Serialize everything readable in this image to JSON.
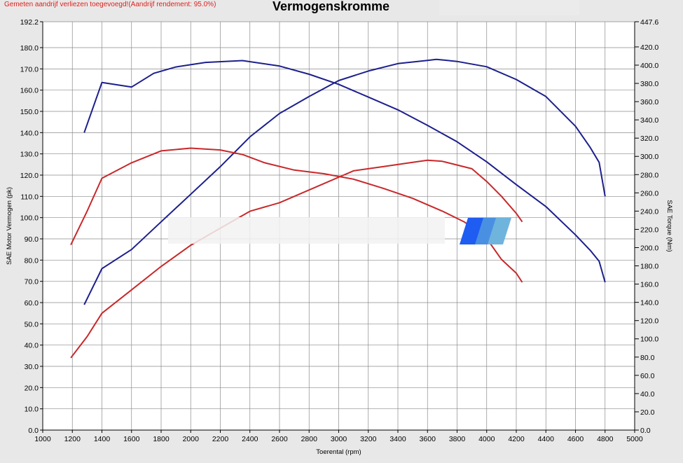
{
  "header": {
    "warning": "Gemeten aandrijf verliezen toegevoegd!(Aandrijf rendement: 95.0%)",
    "title": "Vermogenskromme"
  },
  "colors": {
    "blue": "#1c1f8c",
    "red": "#c8282a",
    "grid": "#8a8a8a",
    "plot_bg": "#ffffff",
    "page_bg": "#e8e8e8"
  },
  "chart_data": {
    "type": "line",
    "title": "Vermogenskromme",
    "xlabel": "Toerental (rpm)",
    "ylabel_left": "SAE Motor Vermogen (pk)",
    "ylabel_right": "SAE Torque (Nm)",
    "xlim": [
      1000,
      5000
    ],
    "ylim_left": [
      0,
      192.2
    ],
    "ylim_right": [
      0,
      447.6
    ],
    "grid": true,
    "x_ticks": [
      1000,
      1200,
      1400,
      1600,
      1800,
      2000,
      2200,
      2400,
      2600,
      2800,
      3000,
      3200,
      3400,
      3600,
      3800,
      4000,
      4200,
      4400,
      4600,
      4800,
      5000
    ],
    "x_tick_labels": [
      "1000",
      "1200",
      "1400",
      "1600",
      "1800",
      "2000",
      "2200",
      "2400",
      "2600",
      "2800",
      "3000",
      "3200",
      "3400",
      "3600",
      "3800",
      "4000",
      "4200",
      "4400",
      "4600",
      "4800",
      "5000"
    ],
    "y_left_ticks": [
      0,
      10,
      20,
      30,
      40,
      50,
      60,
      70,
      80,
      90,
      100,
      110,
      120,
      130,
      140,
      150,
      160,
      170,
      180,
      192.2
    ],
    "y_left_tick_labels": [
      "0.0",
      "10.0",
      "20.0",
      "30.0",
      "40.0",
      "50.0",
      "60.0",
      "70.0",
      "80.0",
      "90.0",
      "100.0",
      "110.0",
      "120.0",
      "130.0",
      "140.0",
      "150.0",
      "160.0",
      "170.0",
      "180.0",
      "192.2"
    ],
    "y_right_ticks": [
      0,
      20,
      40,
      60,
      80,
      100,
      120,
      140,
      160,
      180,
      200,
      220,
      240,
      260,
      280,
      300,
      320,
      340,
      360,
      380,
      400,
      420,
      447.6
    ],
    "y_right_tick_labels": [
      "0.0",
      "20.0",
      "40.0",
      "60.0",
      "80.0",
      "100.0",
      "120.0",
      "140.0",
      "160.0",
      "180.0",
      "200.0",
      "220.0",
      "240.0",
      "260.0",
      "280.0",
      "300.0",
      "320.0",
      "340.0",
      "360.0",
      "380.0",
      "400.0",
      "420.0",
      "447.6"
    ],
    "series": [
      {
        "color": "#1c1f8c",
        "axis": "left",
        "points": [
          [
            1280,
            59
          ],
          [
            1400,
            76
          ],
          [
            1600,
            85
          ],
          [
            1800,
            98
          ],
          [
            2000,
            111
          ],
          [
            2200,
            124
          ],
          [
            2400,
            138
          ],
          [
            2600,
            149
          ],
          [
            2800,
            157
          ],
          [
            3000,
            164.5
          ],
          [
            3200,
            169
          ],
          [
            3400,
            172.5
          ],
          [
            3600,
            174
          ],
          [
            3660,
            174.5
          ],
          [
            3800,
            173.5
          ],
          [
            4000,
            171
          ],
          [
            4200,
            165
          ],
          [
            4400,
            157
          ],
          [
            4600,
            143
          ],
          [
            4700,
            133
          ],
          [
            4760,
            126
          ],
          [
            4800,
            110
          ]
        ]
      },
      {
        "color": "#1c1f8c",
        "axis": "right",
        "points": [
          [
            1280,
            326
          ],
          [
            1400,
            381
          ],
          [
            1600,
            376
          ],
          [
            1750,
            391
          ],
          [
            1900,
            398
          ],
          [
            2100,
            403
          ],
          [
            2350,
            405
          ],
          [
            2600,
            399
          ],
          [
            2800,
            390
          ],
          [
            3000,
            379
          ],
          [
            3200,
            365
          ],
          [
            3400,
            351
          ],
          [
            3600,
            334
          ],
          [
            3800,
            316
          ],
          [
            4000,
            294
          ],
          [
            4200,
            269
          ],
          [
            4400,
            245
          ],
          [
            4600,
            214
          ],
          [
            4700,
            197
          ],
          [
            4760,
            185
          ],
          [
            4800,
            162
          ]
        ]
      },
      {
        "color": "#c8282a",
        "axis": "left",
        "points": [
          [
            1190,
            34
          ],
          [
            1300,
            44
          ],
          [
            1400,
            55
          ],
          [
            1600,
            66
          ],
          [
            1800,
            77
          ],
          [
            2000,
            87
          ],
          [
            2200,
            95
          ],
          [
            2400,
            103
          ],
          [
            2600,
            107
          ],
          [
            2800,
            113
          ],
          [
            3000,
            119
          ],
          [
            3100,
            122
          ],
          [
            3300,
            124
          ],
          [
            3500,
            126
          ],
          [
            3600,
            127
          ],
          [
            3700,
            126.5
          ],
          [
            3900,
            123
          ],
          [
            4000,
            117
          ],
          [
            4100,
            110
          ],
          [
            4200,
            102
          ],
          [
            4240,
            98
          ]
        ]
      },
      {
        "color": "#c8282a",
        "axis": "right",
        "points": [
          [
            1190,
            203
          ],
          [
            1300,
            240
          ],
          [
            1400,
            276
          ],
          [
            1600,
            293
          ],
          [
            1800,
            306
          ],
          [
            2000,
            309
          ],
          [
            2200,
            307
          ],
          [
            2350,
            302
          ],
          [
            2500,
            293
          ],
          [
            2700,
            285
          ],
          [
            2900,
            281
          ],
          [
            3100,
            275
          ],
          [
            3300,
            265
          ],
          [
            3500,
            254
          ],
          [
            3700,
            240
          ],
          [
            3850,
            228
          ],
          [
            4000,
            210
          ],
          [
            4100,
            187
          ],
          [
            4200,
            172
          ],
          [
            4240,
            162
          ]
        ]
      }
    ]
  }
}
